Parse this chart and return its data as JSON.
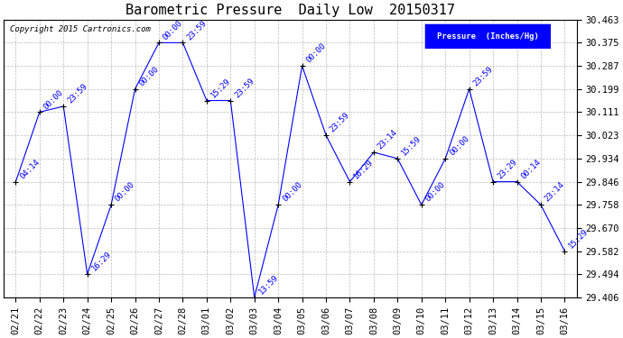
{
  "title": "Barometric Pressure  Daily Low  20150317",
  "copyright": "Copyright 2015 Cartronics.com",
  "legend_label": "Pressure  (Inches/Hg)",
  "dates": [
    "02/21",
    "02/22",
    "02/23",
    "02/24",
    "02/25",
    "02/26",
    "02/27",
    "02/28",
    "03/01",
    "03/02",
    "03/03",
    "03/04",
    "03/05",
    "03/06",
    "03/07",
    "03/08",
    "03/09",
    "03/10",
    "03/11",
    "03/12",
    "03/13",
    "03/14",
    "03/15",
    "03/16"
  ],
  "values": [
    29.846,
    30.111,
    30.133,
    29.494,
    29.758,
    30.199,
    30.375,
    30.375,
    30.155,
    30.155,
    29.406,
    29.758,
    30.287,
    30.023,
    29.846,
    29.958,
    29.934,
    29.758,
    29.934,
    30.199,
    29.846,
    29.846,
    29.758,
    29.582
  ],
  "annotations": [
    "04:14",
    "00:00",
    "23:59",
    "16:29",
    "00:00",
    "00:00",
    "00:00",
    "23:59",
    "15:29",
    "23:59",
    "13:59",
    "00:00",
    "00:00",
    "23:59",
    "16:29",
    "23:14",
    "15:59",
    "00:00",
    "00:00",
    "23:59",
    "23:29",
    "00:14",
    "23:14",
    "15:29"
  ],
  "ylim_min": 29.406,
  "ylim_max": 30.463,
  "yticks": [
    29.406,
    29.494,
    29.582,
    29.67,
    29.758,
    29.846,
    29.934,
    30.023,
    30.111,
    30.199,
    30.287,
    30.375,
    30.463
  ],
  "line_color": "blue",
  "marker_color": "black",
  "annotation_color": "blue",
  "bg_color": "white",
  "grid_color": "#bbbbbb",
  "title_fontsize": 11,
  "annotation_fontsize": 6.5,
  "tick_fontsize": 7.5,
  "legend_box_color": "blue",
  "legend_text_color": "white"
}
